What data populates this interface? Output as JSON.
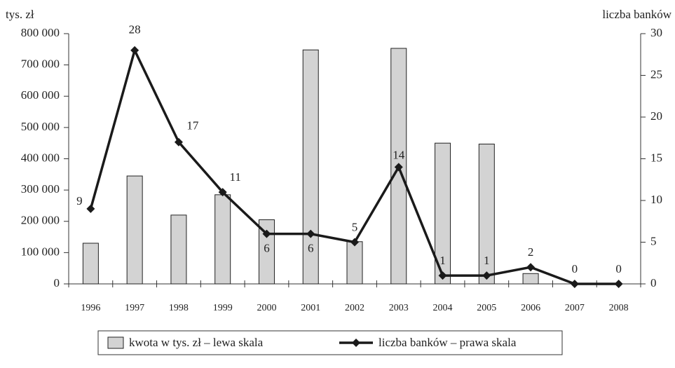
{
  "chart_data": {
    "type": "bar_line",
    "y_label": "tys. zł",
    "y2_label": "liczba banków",
    "categories": [
      "1996",
      "1997",
      "1998",
      "1999",
      "2000",
      "2001",
      "2002",
      "2003",
      "2004",
      "2005",
      "2006",
      "2007",
      "2008"
    ],
    "series": [
      {
        "name": "kwota w tys. zł – lewa skala",
        "type": "bar",
        "color": "#d3d3d3",
        "axis": "y",
        "values": [
          130000,
          345000,
          220000,
          285000,
          205000,
          748000,
          135000,
          753000,
          450000,
          447000,
          33000,
          0,
          0
        ]
      },
      {
        "name": "liczba banków – prawa skala",
        "type": "line",
        "color": "#1a1a1a",
        "axis": "y2",
        "values": [
          9,
          28,
          17,
          11,
          6,
          6,
          5,
          14,
          1,
          1,
          2,
          0,
          0
        ]
      }
    ],
    "ylim": [
      0,
      800000
    ],
    "yticks": [
      0,
      {
        "value": 100000,
        "label": "100 000"
      },
      {
        "value": 200000,
        "label": "200 000"
      },
      {
        "value": 300000,
        "label": "300 000"
      },
      {
        "value": 400000,
        "label": "400 000"
      },
      {
        "value": 500000,
        "label": "500 000"
      },
      {
        "value": 600000,
        "label": "600 000"
      },
      {
        "value": 700000,
        "label": "700 000"
      },
      {
        "value": 800000,
        "label": "800 000"
      }
    ],
    "y2lim": [
      0,
      30
    ],
    "y2ticks": [
      0,
      5,
      10,
      15,
      20,
      25,
      30
    ],
    "legend": "bottom"
  }
}
